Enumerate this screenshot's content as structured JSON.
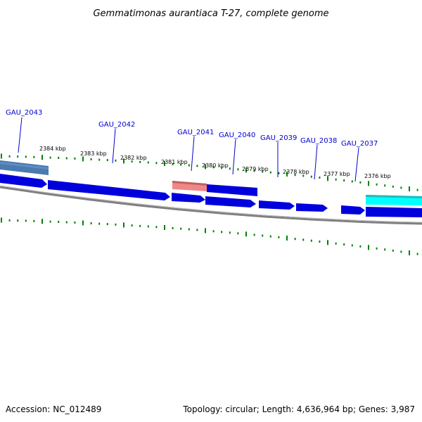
{
  "header": {
    "title": "Gemmatimonas aurantiaca T-27, complete genome"
  },
  "footer": {
    "accession": "Accession: NC_012489",
    "summary": "Topology: circular; Length: 4,636,964 bp; Genes: 3,987"
  },
  "map": {
    "gene_labels": [
      "GAU_2043",
      "GAU_2042",
      "GAU_2041",
      "GAU_2040",
      "GAU_2039",
      "GAU_2038",
      "GAU_2037"
    ],
    "kbp_labels": [
      "2384 kbp",
      "2383 kbp",
      "2382 kbp",
      "2381 kbp",
      "2380 kbp",
      "2379 kbp",
      "2378 kbp",
      "2377 kbp",
      "2376 kbp"
    ],
    "colors": {
      "cds": "#0000dd",
      "highlight_top": "#4477aa",
      "highlight_pink": "#ee8888",
      "highlight_cyan": "#00ffff",
      "tick": "#008000",
      "backbone": "#808080",
      "label": "#0000cc"
    }
  }
}
